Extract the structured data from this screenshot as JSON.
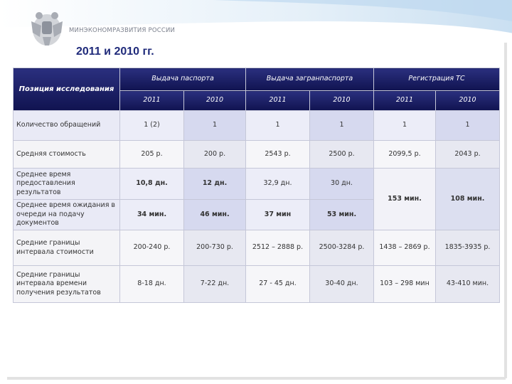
{
  "header": {
    "ministry": "МИНЭКОНОМРАЗВИТИЯ РОССИИ",
    "title": "2011 и 2010 гг."
  },
  "table": {
    "corner": "Позиция исследования",
    "groups": [
      "Выдача паспорта",
      "Выдача загранпаспорта",
      "Регистрация ТС"
    ],
    "years": [
      "2011",
      "2010",
      "2011",
      "2010",
      "2011",
      "2010"
    ],
    "rows": [
      [
        "Количество обращений",
        "1 (2)",
        "1",
        "1",
        "1",
        "1",
        "1"
      ],
      [
        "Средняя  стоимость",
        "205 р.",
        "200 р.",
        "2543  р.",
        "2500 р.",
        "2099,5 р.",
        "2043 р."
      ],
      [
        "Среднее время предоставления результатов",
        "10,8 дн.",
        "12 дн.",
        "32,9 дн.",
        "30 дн.",
        "153 мин.",
        "108 мин."
      ],
      [
        "Среднее время ожидания в очереди на подачу документов",
        "34 мин.",
        "46 мин.",
        "37 мин",
        "53 мин."
      ],
      [
        "Средние границы интервала стоимости",
        "200-240 р.",
        "200-730 р.",
        "2512 – 2888 р.",
        "2500-3284 р.",
        "1438 – 2869 р.",
        "1835-3935 р."
      ],
      [
        "Средние границы интервала времени получения  результатов",
        "8-18 дн.",
        "7-22 дн.",
        "27 - 45 дн.",
        "30-40 дн.",
        "103 – 298 мин",
        "43-410 мин."
      ]
    ]
  }
}
